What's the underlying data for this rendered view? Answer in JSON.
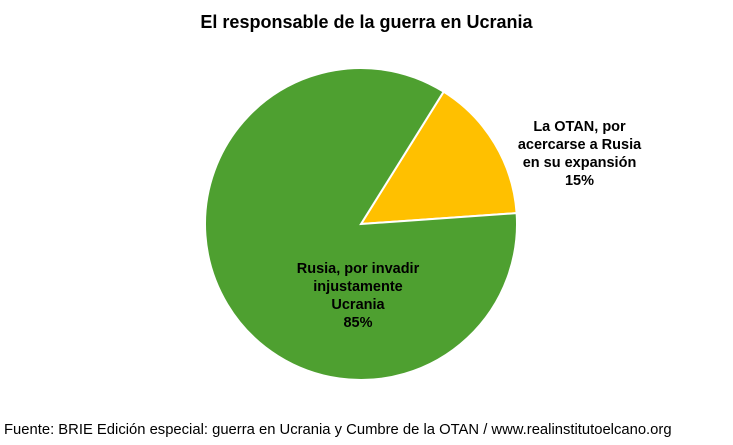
{
  "chart_data": {
    "type": "pie",
    "title": "El responsable de la guerra en Ucrania",
    "slices": [
      {
        "label_lines": [
          "Rusia, por invadir",
          "injustamente",
          "Ucrania"
        ],
        "value": 85,
        "value_label": "85%",
        "color": "#4ea030"
      },
      {
        "label_lines": [
          "La OTAN, por",
          "acercarse a Rusia",
          "en su expansión"
        ],
        "value": 15,
        "value_label": "15%",
        "color": "#ffc000"
      }
    ],
    "legend": "none"
  },
  "source": "Fuente: BRIE Edición especial: guerra en Ucrania y Cumbre de la OTAN / www.realinstitutoelcano.org"
}
